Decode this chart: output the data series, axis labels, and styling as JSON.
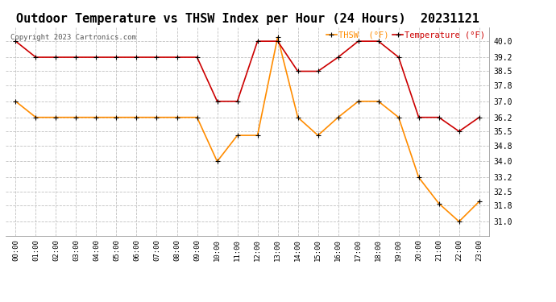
{
  "title": "Outdoor Temperature vs THSW Index per Hour (24 Hours)  20231121",
  "copyright": "Copyright 2023 Cartronics.com",
  "hours": [
    "00:00",
    "01:00",
    "02:00",
    "03:00",
    "04:00",
    "05:00",
    "06:00",
    "07:00",
    "08:00",
    "09:00",
    "10:00",
    "11:00",
    "12:00",
    "13:00",
    "14:00",
    "15:00",
    "16:00",
    "17:00",
    "18:00",
    "19:00",
    "20:00",
    "21:00",
    "22:00",
    "23:00"
  ],
  "temperature": [
    40.0,
    39.2,
    39.2,
    39.2,
    39.2,
    39.2,
    39.2,
    39.2,
    39.2,
    39.2,
    37.0,
    37.0,
    40.0,
    40.0,
    38.5,
    38.5,
    39.2,
    40.0,
    40.0,
    39.2,
    36.2,
    36.2,
    35.5,
    36.2
  ],
  "thsw": [
    37.0,
    36.2,
    36.2,
    36.2,
    36.2,
    36.2,
    36.2,
    36.2,
    36.2,
    36.2,
    34.0,
    35.3,
    35.3,
    40.2,
    36.2,
    35.3,
    36.2,
    37.0,
    37.0,
    36.2,
    33.2,
    31.9,
    31.0,
    32.0
  ],
  "temp_color": "#cc0000",
  "thsw_color": "#ff8c00",
  "marker_color": "#000000",
  "ylim_min": 30.3,
  "ylim_max": 40.7,
  "yticks": [
    31.0,
    31.8,
    32.5,
    33.2,
    34.0,
    34.8,
    35.5,
    36.2,
    37.0,
    37.8,
    38.5,
    39.2,
    40.0
  ],
  "background_color": "#ffffff",
  "grid_color": "#c0c0c0",
  "title_fontsize": 11,
  "legend_thsw": "THSW  (°F)",
  "legend_temp": "Temperature (°F)"
}
